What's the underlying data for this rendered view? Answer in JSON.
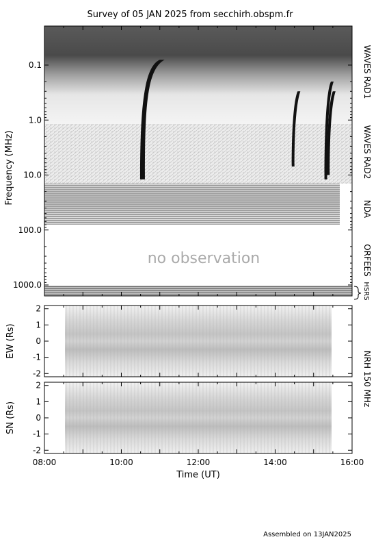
{
  "title": "Survey of 05 JAN 2025 from secchirh.obspm.fr",
  "footer": "Assembled on 13JAN2025",
  "no_observation_text": "no observation",
  "instruments": [
    "WAVES RAD1",
    "WAVES RAD2",
    "NDA",
    "ORFEES",
    "HSRS",
    "NRH 150 MHz"
  ],
  "chart_data": [
    {
      "type": "heatmap",
      "name": "dynamic-spectrum",
      "ylabel": "Frequency (MHz)",
      "y_scale": "log",
      "y_reversed": true,
      "y_ticks": [
        "0.1",
        "1.0",
        "10.0",
        "100.0",
        "1000.0"
      ],
      "x_range": [
        "08:00",
        "16:00"
      ],
      "bursts_start_time": [
        "10:32",
        "14:28",
        "15:19",
        "15:22"
      ],
      "bursts": [
        {
          "time_hf": "10:33",
          "time_lf": "11:00",
          "f_start_mhz": 12.0,
          "f_end_mhz": 0.08
        },
        {
          "time_hf": "14:28",
          "time_lf": "14:35",
          "f_start_mhz": 7.0,
          "f_end_mhz": 0.3
        },
        {
          "time_hf": "15:19",
          "time_lf": "15:27",
          "f_start_mhz": 12.0,
          "f_end_mhz": 0.2
        },
        {
          "time_hf": "15:23",
          "time_lf": "15:30",
          "f_start_mhz": 10.0,
          "f_end_mhz": 0.3
        }
      ]
    },
    {
      "type": "heatmap",
      "name": "nrh-ew",
      "ylabel": "EW (Rs)",
      "y_ticks": [
        "2",
        "1",
        "0",
        "-1",
        "-2"
      ],
      "ylim": [
        -2.2,
        2.2
      ],
      "data_time_range": [
        "08:35",
        "15:25"
      ]
    },
    {
      "type": "heatmap",
      "name": "nrh-sn",
      "ylabel": "SN (Rs)",
      "xlabel": "Time (UT)",
      "x_ticks": [
        "08:00",
        "10:00",
        "12:00",
        "14:00",
        "16:00"
      ],
      "y_ticks": [
        "2",
        "1",
        "0",
        "-1",
        "-2"
      ],
      "ylim": [
        -2.2,
        2.2
      ],
      "data_time_range": [
        "08:35",
        "15:25"
      ]
    }
  ]
}
